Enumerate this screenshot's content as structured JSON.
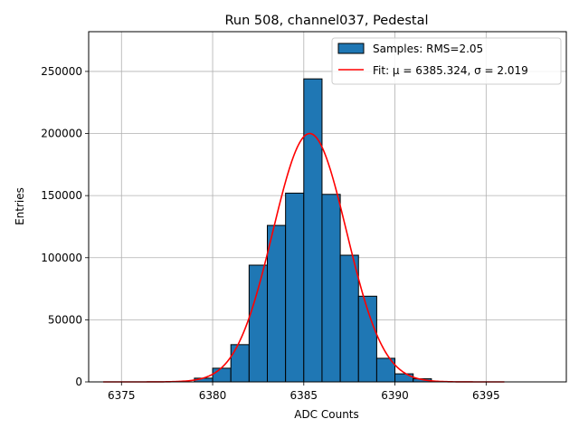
{
  "chart_data": {
    "type": "bar",
    "title": "Run 508, channel037, Pedestal",
    "xlabel": "ADC Counts",
    "ylabel": "Entries",
    "xlim": [
      6373.2,
      6399.4
    ],
    "ylim": [
      0,
      282000
    ],
    "xticks": [
      6375,
      6380,
      6385,
      6390,
      6395
    ],
    "yticks": [
      0,
      50000,
      100000,
      150000,
      200000,
      250000
    ],
    "grid": true,
    "legend_position": "top-right",
    "histogram": {
      "name": "Samples: RMS=2.05",
      "color": "#1f77b4",
      "bin_edges": [
        6379,
        6380,
        6381,
        6382,
        6383,
        6384,
        6385,
        6386,
        6387,
        6388,
        6389,
        6390,
        6391,
        6392
      ],
      "values": [
        3000,
        11000,
        30000,
        94000,
        126000,
        152000,
        244000,
        151000,
        102000,
        69000,
        19000,
        6500,
        2500
      ]
    },
    "fit": {
      "name": "Fit: μ = 6385.324, σ = 2.019",
      "color": "#ff0000",
      "mu": 6385.324,
      "sigma": 2.019,
      "amplitude": 200000,
      "x_range": [
        6374,
        6396
      ]
    }
  }
}
